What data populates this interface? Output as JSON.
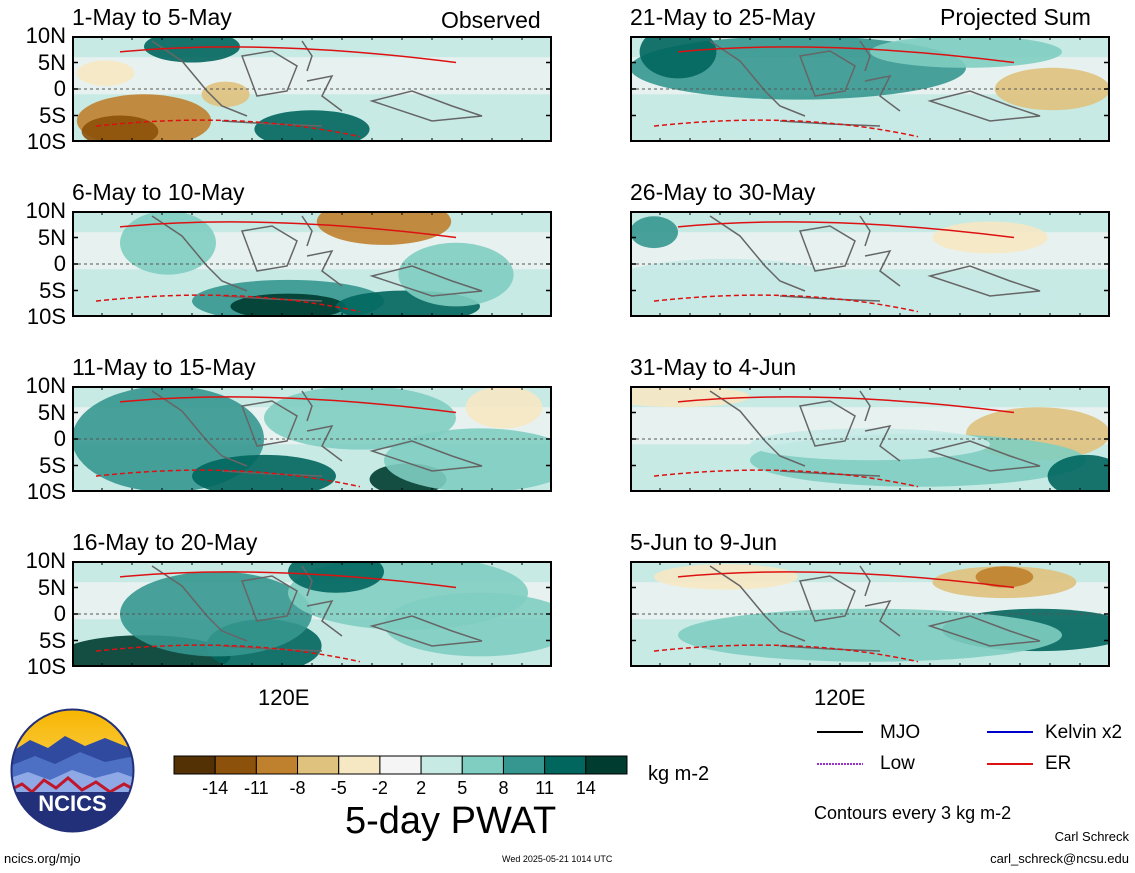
{
  "panel_labels": {
    "observed": "Observed",
    "projected": "Projected Sum"
  },
  "lat_ticks": [
    "10N",
    "5N",
    "0",
    "5S",
    "10S"
  ],
  "lon_tick": "120E",
  "panels": [
    {
      "title": "1-May to 5-May"
    },
    {
      "title": "6-May to 10-May"
    },
    {
      "title": "11-May to 15-May"
    },
    {
      "title": "16-May to 20-May"
    },
    {
      "title": "21-May to 25-May"
    },
    {
      "title": "26-May to 30-May"
    },
    {
      "title": "31-May to 4-Jun"
    },
    {
      "title": "5-Jun to 9-Jun"
    }
  ],
  "colorbar": {
    "labels": [
      "-14",
      "-11",
      "-8",
      "-5",
      "-2",
      "2",
      "5",
      "8",
      "11",
      "14"
    ],
    "colors": [
      "#543005",
      "#8c510a",
      "#bf812d",
      "#dfc27d",
      "#f6e8c3",
      "#f5f5f5",
      "#c7eae5",
      "#80cdc1",
      "#35978f",
      "#01665e",
      "#003c30"
    ],
    "units": "kg m-2",
    "title": "5-day PWAT"
  },
  "legend": {
    "mjo": "MJO",
    "kelvin": "Kelvin x2",
    "low": "Low",
    "er": "ER",
    "colors": {
      "mjo": "#000000",
      "kelvin": "#0000cc",
      "low": "#9933cc",
      "er": "#dd1111"
    },
    "contours_note": "Contours every 3 kg m-2"
  },
  "logo": {
    "text": "NCICS"
  },
  "footer": {
    "left": "ncics.org/mjo",
    "center": "Wed 2025-05-21 1014 UTC",
    "author": "Carl Schreck",
    "email": "carl_schreck@ncsu.edu"
  },
  "chart_data": {
    "type": "heatmap",
    "variable": "5-day PWAT",
    "units": "kg m-2",
    "lat_range": [
      "10S",
      "10N"
    ],
    "contour_interval": 3,
    "color_levels": [
      -14,
      -11,
      -8,
      -5,
      -2,
      2,
      5,
      8,
      11,
      14
    ]
  }
}
